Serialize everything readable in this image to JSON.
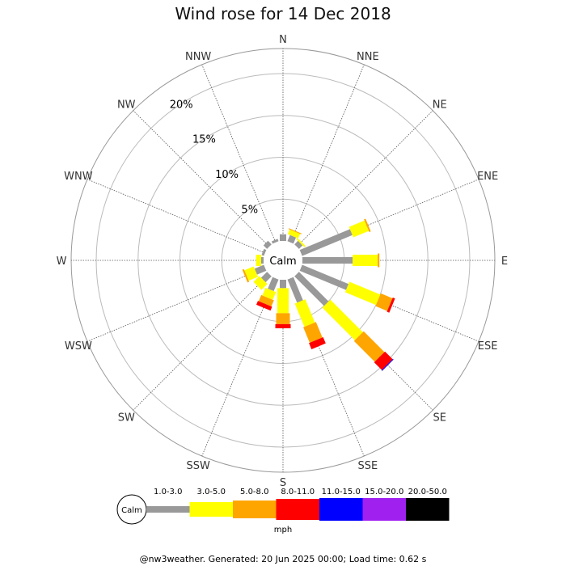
{
  "chart_data": {
    "type": "wind-rose",
    "title": "Wind rose for 14 Dec 2018",
    "directions": [
      "N",
      "NNE",
      "NE",
      "ENE",
      "E",
      "ESE",
      "SE",
      "SSE",
      "S",
      "SSW",
      "SW",
      "WSW",
      "W",
      "WNW",
      "NW",
      "NNW"
    ],
    "ring_labels": [
      "5%",
      "10%",
      "15%",
      "20%"
    ],
    "ring_values": [
      5,
      10,
      15,
      20
    ],
    "max_ring": 23,
    "calm_label": "Calm",
    "unit": "mph",
    "speed_bins": [
      {
        "label": "1.0-3.0",
        "color": "#999999"
      },
      {
        "label": "3.0-5.0",
        "color": "#ffff00"
      },
      {
        "label": "5.0-8.0",
        "color": "#ffa500"
      },
      {
        "label": "8.0-11.0",
        "color": "#ff0000"
      },
      {
        "label": "11.0-15.0",
        "color": "#0000ff"
      },
      {
        "label": "15.0-20.0",
        "color": "#a020f0"
      },
      {
        "label": "20.0-50.0",
        "color": "#000000"
      }
    ],
    "series": [
      {
        "direction": "N",
        "values": [
          0.8,
          0.0,
          0.0,
          0.0,
          0.0,
          0.0,
          0.0
        ]
      },
      {
        "direction": "NNE",
        "values": [
          0.8,
          0.6,
          0.1,
          0.0,
          0.0,
          0.0,
          0.0
        ]
      },
      {
        "direction": "NE",
        "values": [
          0.6,
          0.2,
          0.0,
          0.0,
          0.0,
          0.0,
          0.0
        ]
      },
      {
        "direction": "ENE",
        "values": [
          6.5,
          2.0,
          0.2,
          0.0,
          0.0,
          0.0,
          0.0
        ]
      },
      {
        "direction": "E",
        "values": [
          6.0,
          3.0,
          0.2,
          0.0,
          0.0,
          0.0,
          0.0
        ]
      },
      {
        "direction": "ESE",
        "values": [
          6.0,
          4.0,
          1.5,
          0.3,
          0.0,
          0.0,
          0.0
        ]
      },
      {
        "direction": "SE",
        "values": [
          5.0,
          5.5,
          3.5,
          1.3,
          0.1,
          0.0,
          0.0
        ]
      },
      {
        "direction": "SSE",
        "values": [
          3.0,
          3.0,
          2.0,
          0.8,
          0.0,
          0.0,
          0.0
        ]
      },
      {
        "direction": "S",
        "values": [
          1.0,
          3.0,
          1.3,
          0.5,
          0.0,
          0.0,
          0.0
        ]
      },
      {
        "direction": "SSW",
        "values": [
          1.5,
          1.0,
          0.8,
          0.5,
          0.0,
          0.0,
          0.0
        ]
      },
      {
        "direction": "SW",
        "values": [
          1.0,
          1.0,
          0.0,
          0.0,
          0.0,
          0.0,
          0.0
        ]
      },
      {
        "direction": "WSW",
        "values": [
          1.2,
          1.2,
          0.2,
          0.0,
          0.0,
          0.0,
          0.0
        ]
      },
      {
        "direction": "W",
        "values": [
          0.3,
          0.6,
          0.0,
          0.0,
          0.0,
          0.0,
          0.0
        ]
      },
      {
        "direction": "WNW",
        "values": [
          0.3,
          0.0,
          0.0,
          0.0,
          0.0,
          0.0,
          0.0
        ]
      },
      {
        "direction": "NW",
        "values": [
          0.6,
          0.0,
          0.0,
          0.0,
          0.0,
          0.0,
          0.0
        ]
      },
      {
        "direction": "NNW",
        "values": [
          0.3,
          0.0,
          0.0,
          0.0,
          0.0,
          0.0,
          0.0
        ]
      }
    ]
  },
  "footer": "@nw3weather. Generated: 20 Jun 2025 00:00; Load time: 0.62 s"
}
